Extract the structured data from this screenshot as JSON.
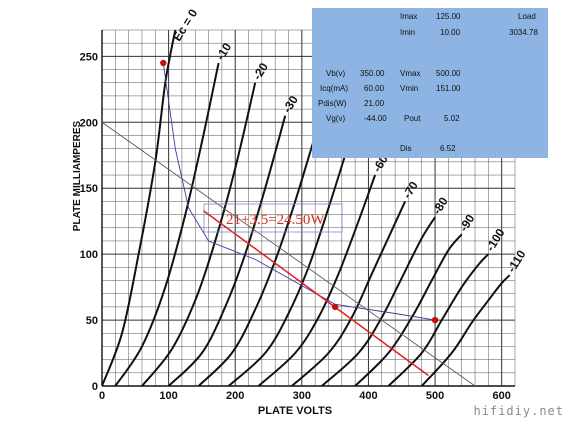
{
  "chart_data": {
    "type": "line",
    "xlabel": "PLATE VOLTS",
    "ylabel": "PLATE MILLIAMPERES",
    "xlim": [
      0,
      620
    ],
    "ylim": [
      0,
      270
    ],
    "x_ticks": [
      "0",
      "100",
      "200",
      "300",
      "400",
      "500",
      "600"
    ],
    "y_ticks": [
      "0",
      "50",
      "100",
      "150",
      "200",
      "250"
    ],
    "grid": true,
    "curve_labels": [
      "Eᴄ = 0",
      "-10",
      "-20",
      "-30",
      "-40",
      "-50",
      "-60",
      "-70",
      "-80",
      "-90",
      "-100",
      "-110"
    ],
    "grid_curves": [
      {
        "vg": 0,
        "points": [
          [
            0,
            0
          ],
          [
            30,
            40
          ],
          [
            55,
            100
          ],
          [
            80,
            170
          ],
          [
            95,
            230
          ],
          [
            110,
            270
          ]
        ]
      },
      {
        "vg": -10,
        "points": [
          [
            20,
            0
          ],
          [
            60,
            30
          ],
          [
            95,
            75
          ],
          [
            125,
            130
          ],
          [
            150,
            185
          ],
          [
            175,
            245
          ]
        ]
      },
      {
        "vg": -20,
        "points": [
          [
            60,
            0
          ],
          [
            105,
            28
          ],
          [
            140,
            65
          ],
          [
            170,
            110
          ],
          [
            200,
            165
          ],
          [
            230,
            230
          ]
        ]
      },
      {
        "vg": -30,
        "points": [
          [
            100,
            0
          ],
          [
            150,
            25
          ],
          [
            185,
            60
          ],
          [
            215,
            100
          ],
          [
            245,
            150
          ],
          [
            275,
            205
          ]
        ]
      },
      {
        "vg": -40,
        "points": [
          [
            145,
            0
          ],
          [
            195,
            25
          ],
          [
            230,
            58
          ],
          [
            260,
            95
          ],
          [
            290,
            140
          ],
          [
            320,
            190
          ]
        ]
      },
      {
        "vg": -50,
        "points": [
          [
            190,
            0
          ],
          [
            245,
            25
          ],
          [
            280,
            55
          ],
          [
            310,
            90
          ],
          [
            340,
            135
          ],
          [
            365,
            175
          ]
        ]
      },
      {
        "vg": -60,
        "points": [
          [
            235,
            0
          ],
          [
            290,
            25
          ],
          [
            325,
            52
          ],
          [
            355,
            85
          ],
          [
            385,
            125
          ],
          [
            410,
            160
          ]
        ]
      },
      {
        "vg": -70,
        "points": [
          [
            285,
            0
          ],
          [
            340,
            25
          ],
          [
            375,
            52
          ],
          [
            405,
            85
          ],
          [
            435,
            118
          ],
          [
            455,
            140
          ]
        ]
      },
      {
        "vg": -80,
        "points": [
          [
            330,
            0
          ],
          [
            385,
            25
          ],
          [
            420,
            52
          ],
          [
            450,
            82
          ],
          [
            480,
            112
          ],
          [
            500,
            128
          ]
        ]
      },
      {
        "vg": -90,
        "points": [
          [
            380,
            0
          ],
          [
            430,
            25
          ],
          [
            465,
            52
          ],
          [
            495,
            80
          ],
          [
            520,
            103
          ],
          [
            540,
            115
          ]
        ]
      },
      {
        "vg": -100,
        "points": [
          [
            430,
            0
          ],
          [
            480,
            25
          ],
          [
            510,
            50
          ],
          [
            540,
            75
          ],
          [
            565,
            92
          ],
          [
            580,
            100
          ]
        ]
      },
      {
        "vg": -110,
        "points": [
          [
            480,
            0
          ],
          [
            525,
            25
          ],
          [
            555,
            48
          ],
          [
            580,
            65
          ],
          [
            600,
            78
          ],
          [
            612,
            84
          ]
        ]
      }
    ],
    "series": [
      {
        "color": "#3a3aa0",
        "points": [
          [
            92,
            245
          ],
          [
            110,
            180
          ],
          [
            130,
            135
          ],
          [
            160,
            110
          ],
          [
            230,
            96
          ],
          [
            350,
            62
          ],
          [
            440,
            55
          ],
          [
            500,
            50
          ]
        ]
      },
      {
        "color": "#5a5a5a",
        "points": [
          [
            0,
            200
          ],
          [
            560,
            0
          ]
        ]
      },
      {
        "color": "#e02020",
        "points": [
          [
            152,
            133
          ],
          [
            490,
            8
          ]
        ]
      }
    ],
    "points": [
      {
        "x": 92,
        "y": 245,
        "color": "#c01010"
      },
      {
        "x": 350,
        "y": 60,
        "color": "#c01010"
      },
      {
        "x": 500,
        "y": 50,
        "color": "#c01010"
      }
    ],
    "annotation": "21+3.5=24.50W"
  },
  "info": {
    "imax_label": "Imax",
    "imax_value": "125.00",
    "load_label": "Load",
    "imin_label": "Imin",
    "imin_value": "10.00",
    "load_value": "3034.78",
    "vb_label": "Vb(v)",
    "vb_value": "350.00",
    "vmax_label": "Vmax",
    "vmax_value": "500.00",
    "icq_label": "Icq(mA)",
    "icq_value": "60.00",
    "vmin_label": "Vmin",
    "vmin_value": "151.00",
    "pdis_label": "Pdis(W)",
    "pdis_value": "21.00",
    "vg_label": "Vg(v)",
    "vg_value": "-44.00",
    "pout_label": "Pout",
    "pout_value": "5.02",
    "dis_label": "Dis",
    "dis_value": "6.52"
  },
  "watermark": "hifidiy.net"
}
